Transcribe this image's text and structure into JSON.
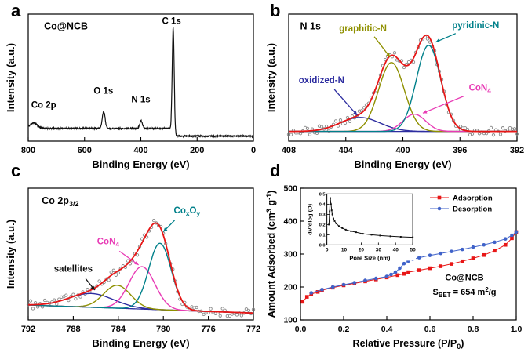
{
  "figure": {
    "bg": "#ffffff",
    "panel_letters": {
      "a": "a",
      "b": "b",
      "c": "c",
      "d": "d"
    }
  },
  "chart_data": [
    {
      "panel": "a",
      "type": "line",
      "style": "survey",
      "title": "Co@NCB",
      "title_pos": [
        0.07,
        0.88
      ],
      "xlabel": "Binding Energy (eV)",
      "ylabel": "Intensity (a.u.)",
      "xlim": [
        800,
        0
      ],
      "xticks": [
        800,
        600,
        400,
        200,
        0
      ],
      "ymax": 1.15,
      "samples": 1000,
      "seed": 11,
      "line_color": "#111111",
      "baseline": {
        "type": "step",
        "left": 0.115,
        "right": 0.045,
        "step_at": 282,
        "step_width": 3
      },
      "peaks": [
        {
          "name": "Co 2p",
          "center": 781,
          "height": 0.05,
          "width": 13
        },
        {
          "name": "O 1s",
          "center": 532,
          "height": 0.155,
          "width": 5
        },
        {
          "name": "N 1s",
          "center": 399,
          "height": 0.065,
          "width": 5
        },
        {
          "name": "C 1s",
          "center": 285,
          "height": 0.93,
          "width": 3.5
        }
      ],
      "peak_labels": [
        {
          "text": "Co 2p",
          "x": 745,
          "y": 0.3
        },
        {
          "text": "O 1s",
          "x": 533,
          "y": 0.43
        },
        {
          "text": "N 1s",
          "x": 400,
          "y": 0.35
        },
        {
          "text": "C 1s",
          "x": 291,
          "y": 1.06
        }
      ]
    },
    {
      "panel": "b",
      "type": "xps-fit",
      "title": "N 1s",
      "title_pos": [
        0.05,
        0.88
      ],
      "xlabel": "Binding Energy (eV)",
      "ylabel": "Intensity (a.u.)",
      "xlim": [
        408,
        392
      ],
      "xticks": [
        408,
        404,
        400,
        396,
        392
      ],
      "ymax": 1.18,
      "samples": 360,
      "seed": 23,
      "envelope_color": "#e81616",
      "scatter_color": "#8a8a8a",
      "baseline_color": "#2d2da0",
      "baseline": {
        "type": "linear",
        "left": 0.09,
        "right": 0.09
      },
      "peaks": [
        {
          "name": "oxidized-N",
          "center": 403.0,
          "height": 0.13,
          "width": 1.4,
          "color": "#2d2da0"
        },
        {
          "name": "graphitic-N",
          "center": 400.8,
          "height": 0.64,
          "width": 0.9,
          "color": "#8f9000"
        },
        {
          "name": "CoN4",
          "center": 399.2,
          "height": 0.16,
          "width": 0.8,
          "color": "#e83bb5"
        },
        {
          "name": "pyridinic-N",
          "center": 398.2,
          "height": 0.8,
          "width": 0.85,
          "color": "#00808a"
        }
      ],
      "annotations": [
        {
          "text": "graphitic-N",
          "color": "#8f9000",
          "tx": 402.8,
          "ty": 1.02,
          "arrow": [
            402.0,
            0.97,
            400.9,
            0.78
          ]
        },
        {
          "text": "pyridinic-N",
          "color": "#00808a",
          "tx": 394.9,
          "ty": 1.05,
          "arrow": [
            396.3,
            1.0,
            397.7,
            0.92
          ]
        },
        {
          "text": "oxidized-N",
          "color": "#2d2da0",
          "tx": 405.7,
          "ty": 0.54,
          "arrow": [
            404.8,
            0.48,
            403.2,
            0.24
          ]
        },
        {
          "text": "CoN_{4}",
          "color": "#e83bb5",
          "tx": 394.6,
          "ty": 0.47,
          "arrow": [
            395.7,
            0.42,
            398.6,
            0.26
          ]
        }
      ]
    },
    {
      "panel": "c",
      "type": "xps-fit",
      "title": "Co 2p_{3/2}",
      "title_pos": [
        0.06,
        0.88
      ],
      "xlabel": "Binding Energy (eV)",
      "ylabel": "Intensity (a.u.)",
      "xlim": [
        792,
        772
      ],
      "xticks": [
        792,
        788,
        784,
        780,
        776,
        772
      ],
      "ymax": 1.15,
      "samples": 360,
      "seed": 37,
      "envelope_color": "#e81616",
      "scatter_color": "#8a8a8a",
      "baseline_color": "#2d2da0",
      "baseline": {
        "type": "linear",
        "left": 0.13,
        "right": 0.06
      },
      "peaks": [
        {
          "name": "satellite-broad",
          "center": 786.4,
          "height": 0.12,
          "width": 2.0,
          "color": "#2d2da0"
        },
        {
          "name": "satellite",
          "center": 784.1,
          "height": 0.2,
          "width": 1.2,
          "color": "#8f9000"
        },
        {
          "name": "CoN4",
          "center": 781.9,
          "height": 0.37,
          "width": 1.15,
          "color": "#e83bb5"
        },
        {
          "name": "CoxOy",
          "center": 780.3,
          "height": 0.58,
          "width": 1.0,
          "color": "#00808a"
        }
      ],
      "annotations": [
        {
          "text": "satellites",
          "color": "#111111",
          "tx": 788.0,
          "ty": 0.42,
          "arrow": [
            786.9,
            0.36,
            786.1,
            0.26
          ]
        },
        {
          "text": "CoN_{4}",
          "color": "#e83bb5",
          "tx": 784.9,
          "ty": 0.66,
          "arrow": [
            783.9,
            0.6,
            782.2,
            0.48
          ]
        },
        {
          "text": "Co_{x}O_{y}",
          "color": "#00808a",
          "tx": 777.9,
          "ty": 0.93,
          "arrow": [
            779.0,
            0.87,
            780.0,
            0.77
          ]
        }
      ]
    },
    {
      "panel": "d",
      "type": "scatter",
      "xlabel": "Relative Pressure (P/P_{0})",
      "ylabel": "Amount Adsorbed (cm^{3} g^{-1})",
      "xlim": [
        0,
        1
      ],
      "ylim": [
        100,
        500
      ],
      "xticks": [
        0,
        0.2,
        0.4,
        0.6,
        0.8,
        1.0
      ],
      "xtick_labels": [
        "0.0",
        "0.2",
        "0.4",
        "0.6",
        "0.8",
        "1.0"
      ],
      "yticks": [
        100,
        200,
        300,
        400,
        500
      ],
      "legend": {
        "fx": 0.6,
        "entries": [
          "Adsorption",
          "Desorption"
        ]
      },
      "series": [
        {
          "name": "Adsorption",
          "color": "#e81616",
          "marker": "square",
          "x": [
            0.01,
            0.03,
            0.05,
            0.08,
            0.1,
            0.15,
            0.2,
            0.25,
            0.3,
            0.35,
            0.4,
            0.45,
            0.48,
            0.5,
            0.55,
            0.6,
            0.65,
            0.7,
            0.75,
            0.8,
            0.85,
            0.9,
            0.95,
            0.98,
            1.0
          ],
          "y": [
            155,
            170,
            178,
            185,
            190,
            198,
            205,
            211,
            217,
            223,
            229,
            236,
            240,
            245,
            251,
            257,
            263,
            270,
            278,
            287,
            297,
            310,
            328,
            348,
            367
          ]
        },
        {
          "name": "Desorption",
          "color": "#3f62c9",
          "marker": "circle",
          "x": [
            1.0,
            0.98,
            0.95,
            0.9,
            0.85,
            0.8,
            0.75,
            0.7,
            0.65,
            0.6,
            0.55,
            0.52,
            0.5,
            0.48,
            0.46,
            0.44,
            0.42,
            0.4,
            0.35,
            0.3,
            0.25,
            0.2,
            0.15,
            0.1,
            0.05
          ],
          "y": [
            367,
            357,
            346,
            336,
            328,
            321,
            314,
            308,
            302,
            296,
            289,
            284,
            279,
            271,
            257,
            245,
            238,
            232,
            226,
            220,
            213,
            207,
            200,
            192,
            182
          ]
        }
      ],
      "texts": [
        {
          "text": "Co@NCB",
          "fx": 0.76,
          "fy": 0.3
        },
        {
          "text": "S_{BET} = 654 m^{2}/g",
          "fx": 0.76,
          "fy": 0.19
        }
      ],
      "inset": {
        "region": [
          0.035,
          0.02,
          0.5,
          0.53
        ],
        "xlabel": "Pore Size (nm)",
        "ylabel": "dV/dlog (D)",
        "xlim": [
          0,
          50
        ],
        "ylim": [
          0,
          0.5
        ],
        "xticks": [
          0,
          10,
          20,
          30,
          40,
          50
        ],
        "yticks": [
          0.0,
          0.1,
          0.2,
          0.3,
          0.4,
          0.5
        ],
        "ytick_labels": [
          "0.0",
          "0.1",
          "0.2",
          "0.3",
          "0.4",
          "0.5"
        ],
        "x": [
          1.2,
          1.6,
          2.0,
          2.4,
          2.8,
          3.2,
          3.8,
          4.5,
          5.5,
          7,
          9,
          11,
          14,
          17,
          21,
          26,
          31,
          37,
          43,
          50
        ],
        "y": [
          0.2,
          0.33,
          0.46,
          0.4,
          0.34,
          0.3,
          0.26,
          0.235,
          0.21,
          0.185,
          0.165,
          0.15,
          0.135,
          0.125,
          0.11,
          0.1,
          0.092,
          0.085,
          0.08,
          0.075
        ]
      }
    }
  ]
}
